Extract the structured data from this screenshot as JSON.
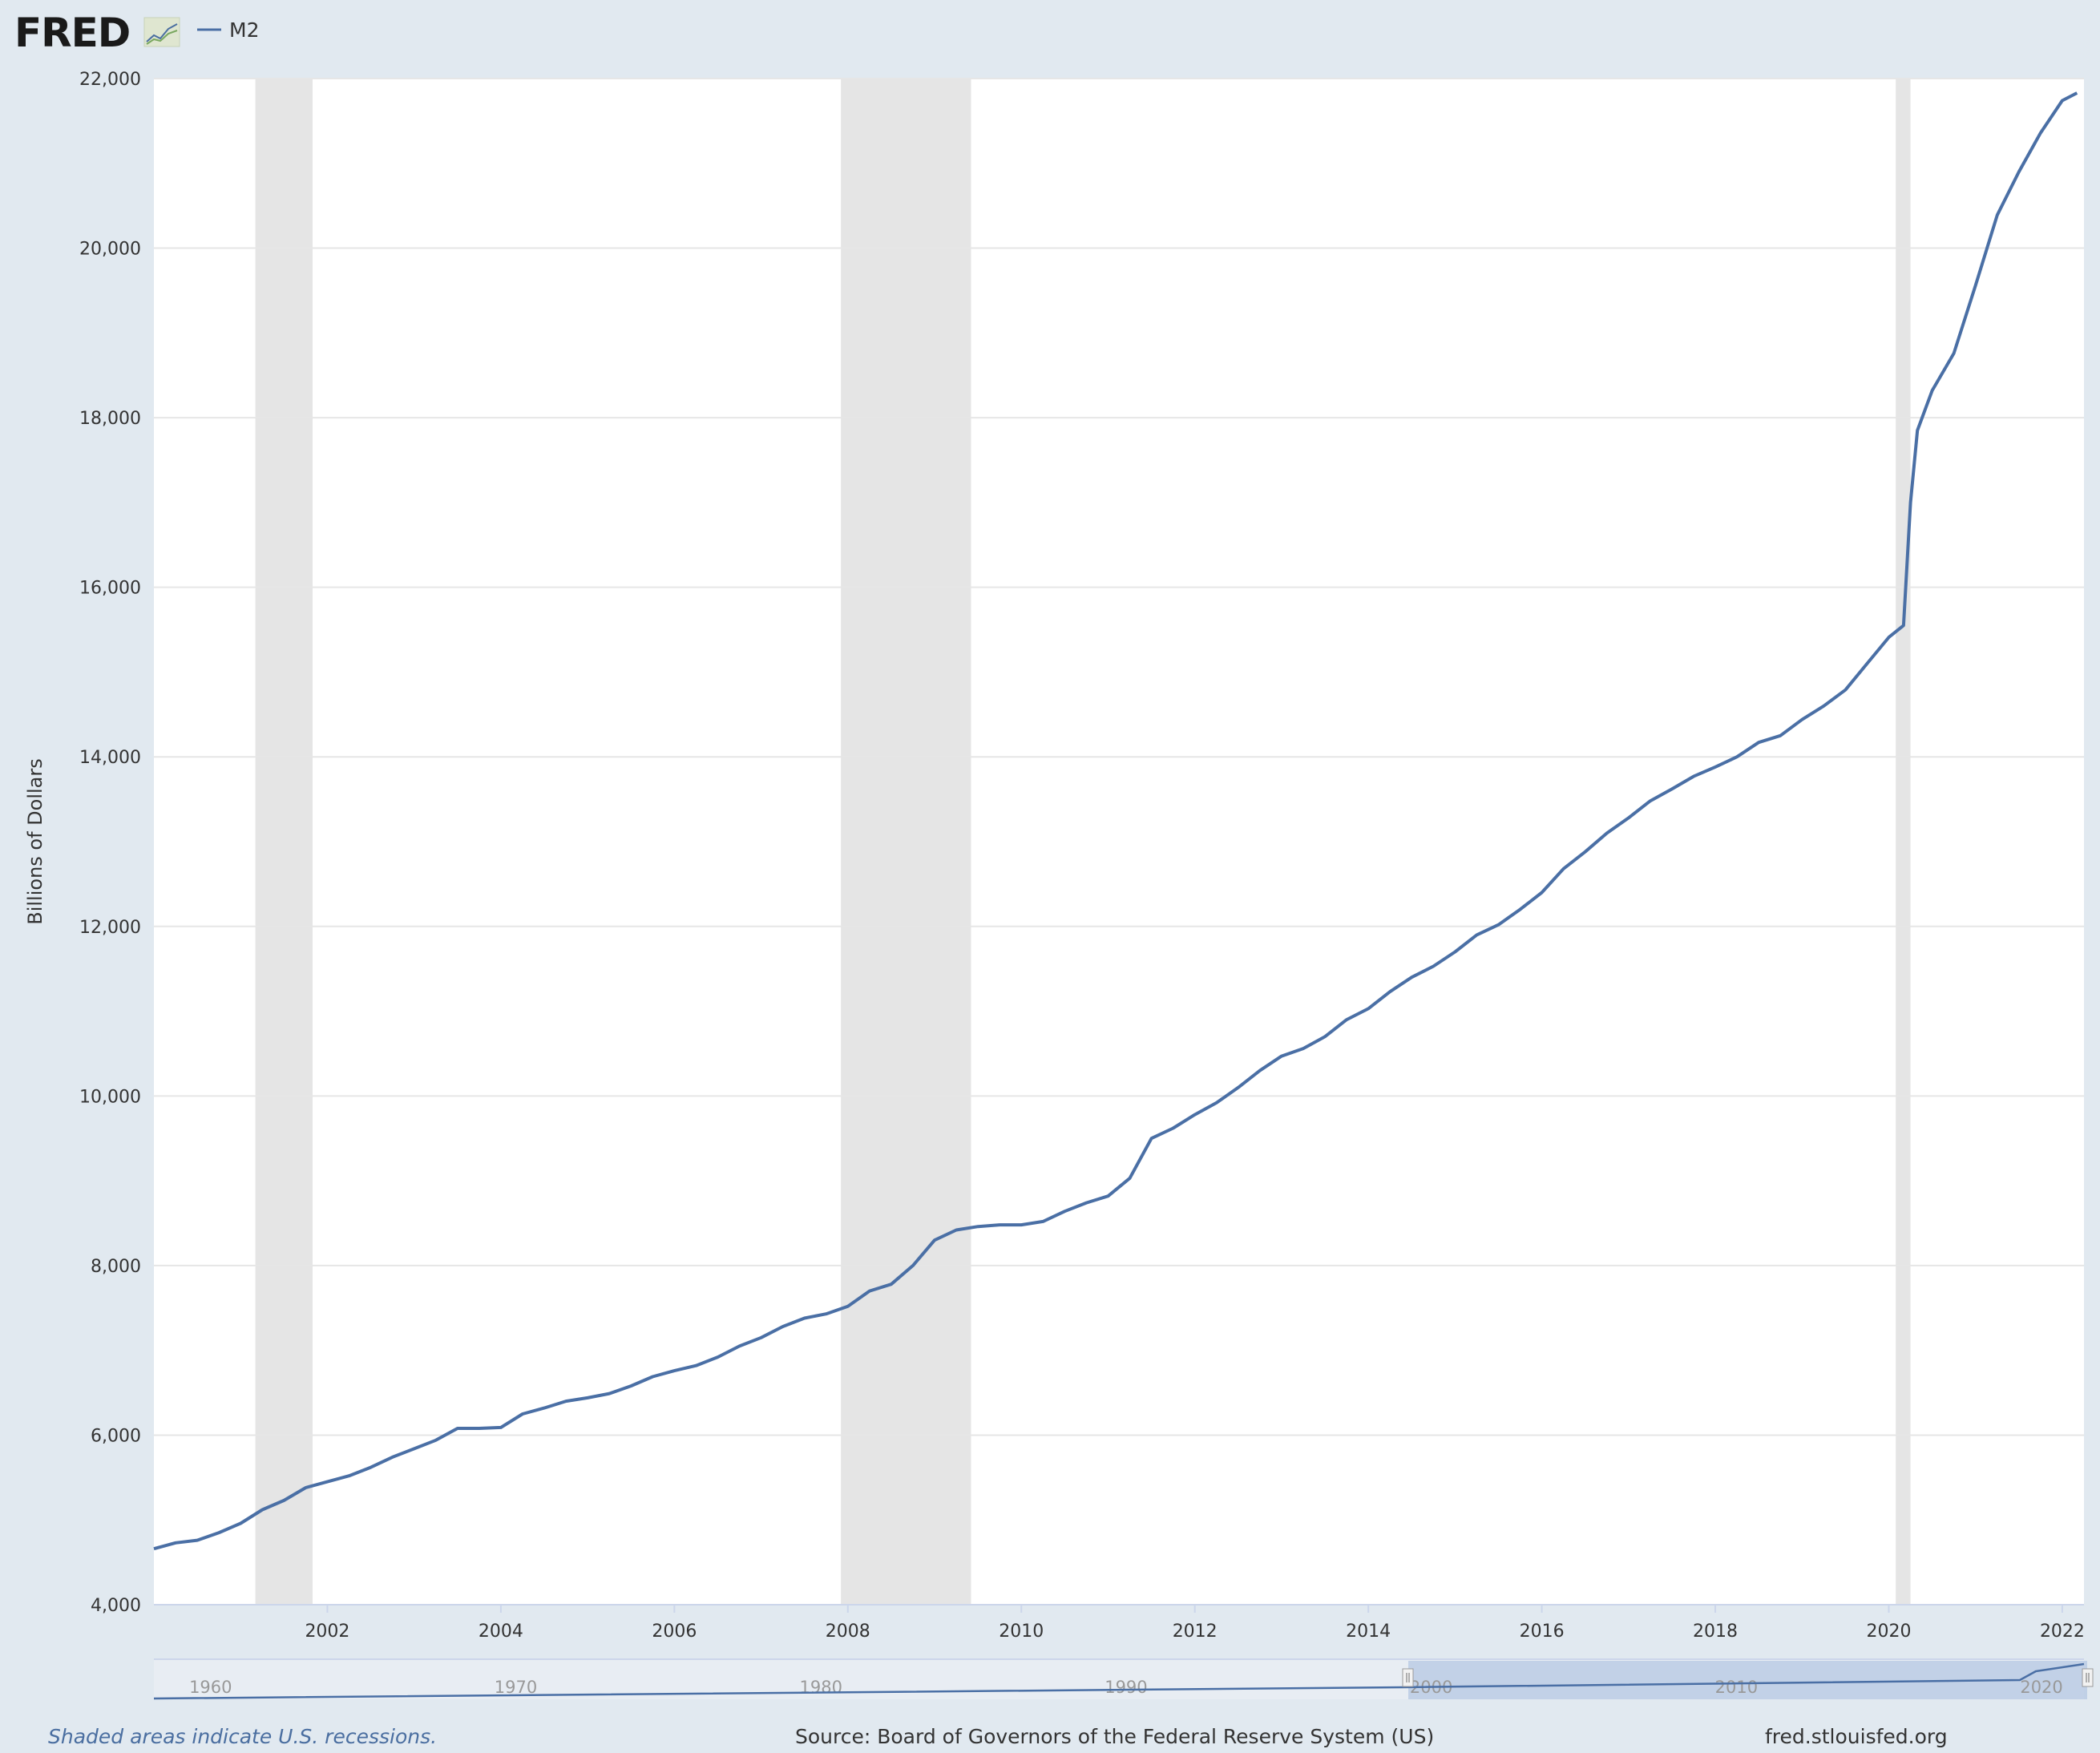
{
  "header": {
    "logo_text": "FRED",
    "logo_icon": "fred-chart-icon",
    "legend_label": "M2"
  },
  "colors": {
    "line": "#4a6fa5",
    "recession": "#e5e5e5",
    "background": "#e1e9f0",
    "plot_bg": "#ffffff",
    "navigator_fill": "#b8c9e4"
  },
  "chart_data": {
    "type": "line",
    "title": "",
    "ylabel": "Billions of Dollars",
    "xlabel": "",
    "xlim": [
      2000.0,
      2022.25
    ],
    "ylim": [
      4000,
      22000
    ],
    "yticks": [
      4000,
      6000,
      8000,
      10000,
      12000,
      14000,
      16000,
      18000,
      20000,
      22000
    ],
    "ytick_labels": [
      "4,000",
      "6,000",
      "8,000",
      "10,000",
      "12,000",
      "14,000",
      "16,000",
      "18,000",
      "20,000",
      "22,000"
    ],
    "xticks": [
      2002,
      2004,
      2006,
      2008,
      2010,
      2012,
      2014,
      2016,
      2018,
      2020,
      2022
    ],
    "xtick_labels": [
      "2002",
      "2004",
      "2006",
      "2008",
      "2010",
      "2012",
      "2014",
      "2016",
      "2018",
      "2020",
      "2022"
    ],
    "grid": "horizontal",
    "legend": "top-left",
    "recessions": [
      {
        "start": 2001.17,
        "end": 2001.83
      },
      {
        "start": 2007.92,
        "end": 2009.42
      },
      {
        "start": 2020.08,
        "end": 2020.25
      }
    ],
    "series": [
      {
        "name": "M2",
        "x": [
          2000.0,
          2000.25,
          2000.5,
          2000.75,
          2001.0,
          2001.25,
          2001.5,
          2001.75,
          2002.0,
          2002.25,
          2002.5,
          2002.75,
          2003.0,
          2003.25,
          2003.5,
          2003.75,
          2004.0,
          2004.25,
          2004.5,
          2004.75,
          2005.0,
          2005.25,
          2005.5,
          2005.75,
          2006.0,
          2006.25,
          2006.5,
          2006.75,
          2007.0,
          2007.25,
          2007.5,
          2007.75,
          2008.0,
          2008.25,
          2008.5,
          2008.75,
          2009.0,
          2009.25,
          2009.5,
          2009.75,
          2010.0,
          2010.25,
          2010.5,
          2010.75,
          2011.0,
          2011.25,
          2011.5,
          2011.75,
          2012.0,
          2012.25,
          2012.5,
          2012.75,
          2013.0,
          2013.25,
          2013.5,
          2013.75,
          2014.0,
          2014.25,
          2014.5,
          2014.75,
          2015.0,
          2015.25,
          2015.5,
          2015.75,
          2016.0,
          2016.25,
          2016.5,
          2016.75,
          2017.0,
          2017.25,
          2017.5,
          2017.75,
          2018.0,
          2018.25,
          2018.5,
          2018.75,
          2019.0,
          2019.25,
          2019.5,
          2019.75,
          2020.0,
          2020.17,
          2020.25,
          2020.33,
          2020.5,
          2020.75,
          2021.0,
          2021.25,
          2021.5,
          2021.75,
          2022.0,
          2022.17
        ],
        "values": [
          4660,
          4730,
          4760,
          4850,
          4960,
          5120,
          5230,
          5380,
          5450,
          5520,
          5620,
          5740,
          5840,
          5940,
          6080,
          6080,
          6090,
          6250,
          6320,
          6400,
          6440,
          6490,
          6580,
          6690,
          6760,
          6820,
          6920,
          7050,
          7150,
          7280,
          7380,
          7430,
          7520,
          7700,
          7780,
          8000,
          8300,
          8420,
          8460,
          8480,
          8480,
          8520,
          8640,
          8740,
          8820,
          9030,
          9500,
          9620,
          9780,
          9920,
          10100,
          10300,
          10470,
          10560,
          10700,
          10900,
          11030,
          11230,
          11400,
          11530,
          11700,
          11900,
          12020,
          12200,
          12400,
          12680,
          12880,
          13100,
          13280,
          13480,
          13620,
          13770,
          13880,
          14000,
          14170,
          14250,
          14440,
          14600,
          14790,
          15100,
          15410,
          15550,
          17000,
          17850,
          18320,
          18760,
          19560,
          20390,
          20900,
          21360,
          21740,
          21830
        ]
      }
    ],
    "navigator": {
      "ticks": [
        "1960",
        "1970",
        "1980",
        "1990",
        "2000",
        "2010",
        "2020"
      ]
    }
  },
  "footer": {
    "recession_note": "Shaded areas indicate U.S. recessions.",
    "source": "Source: Board of Governors of the Federal Reserve System (US)",
    "site": "fred.stlouisfed.org"
  }
}
